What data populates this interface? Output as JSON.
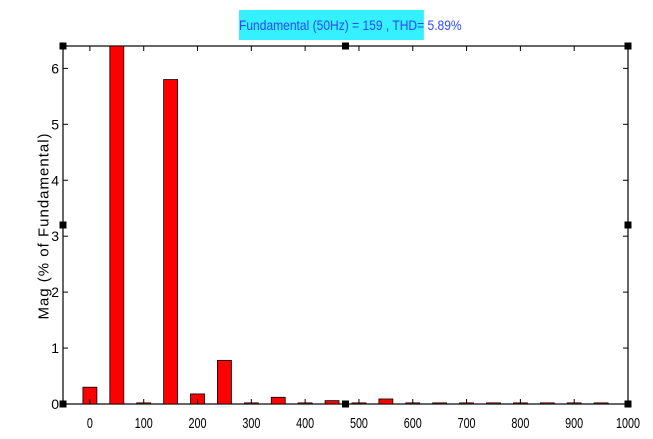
{
  "chart_data": {
    "type": "bar",
    "title": "Fundamental (50Hz) = 159 , THD= 5.89%",
    "xlabel": "",
    "ylabel": "Mag (% of Fundamental)",
    "x": [
      0,
      50,
      100,
      150,
      200,
      250,
      300,
      350,
      400,
      450,
      500,
      550,
      600,
      650,
      700,
      750,
      800,
      850,
      900,
      950
    ],
    "values": [
      0.3,
      6.4,
      0.02,
      5.8,
      0.18,
      0.78,
      0.02,
      0.12,
      0.02,
      0.06,
      0.02,
      0.09,
      0.02,
      0.02,
      0.02,
      0.02,
      0.02,
      0.02,
      0.02,
      0.02
    ],
    "xlim": [
      -50,
      1000
    ],
    "ylim": [
      0,
      6.4
    ],
    "xticks": [
      "0",
      "100",
      "200",
      "300",
      "400",
      "500",
      "600",
      "700",
      "800",
      "900",
      "1000"
    ],
    "yticks": [
      "0",
      "1",
      "2",
      "3",
      "4",
      "5",
      "6"
    ],
    "grid": false,
    "bar_color": "#ff0000",
    "frame_color": "#000000"
  }
}
